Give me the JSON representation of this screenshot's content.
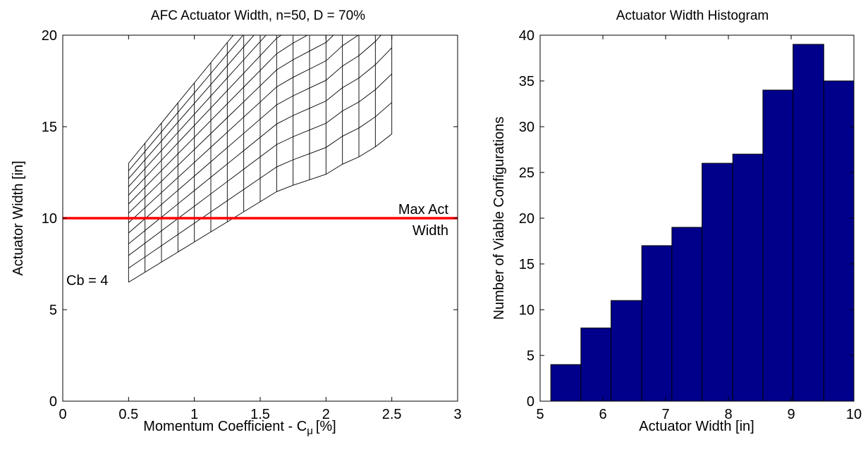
{
  "chart_data": [
    {
      "type": "line",
      "title": "AFC Actuator Width, n=50, D = 70%",
      "xlabel_main": "Momentum Coefficient - C",
      "xlabel_sub": "μ",
      "xlabel_unit": "[%]",
      "ylabel": "Actuator Width [in]",
      "xlim": [
        0,
        3
      ],
      "ylim": [
        0,
        20
      ],
      "xticks": [
        "0",
        "0.5",
        "1",
        "1.5",
        "2",
        "2.5",
        "3"
      ],
      "xtick_values": [
        0,
        0.5,
        1,
        1.5,
        2,
        2.5,
        3
      ],
      "yticks": [
        "0",
        "5",
        "10",
        "15",
        "20"
      ],
      "ytick_values": [
        0,
        5,
        10,
        15,
        20
      ],
      "grid": false,
      "carpet": {
        "cmu_values": [
          0.5,
          0.625,
          0.75,
          0.875,
          1.0,
          1.125,
          1.25,
          1.375,
          1.5,
          1.625,
          1.75,
          1.875,
          2.0,
          2.125,
          2.25,
          2.375,
          2.5
        ],
        "cb_base_width": [
          6.5,
          7.05,
          7.6,
          8.15,
          8.7,
          9.25,
          9.8,
          10.35,
          10.9,
          11.45,
          11.8,
          12.1,
          12.4,
          12.95,
          13.35,
          13.9,
          14.6
        ],
        "cb_count": 13,
        "width_exponent": 0.5
      },
      "reference_line": {
        "y": 10,
        "color": "#ff0000",
        "label_line1": "Max Act",
        "label_line2": "Width"
      },
      "annotation": {
        "text": "Cb = 4",
        "x": 0.5,
        "y": 6.5
      }
    },
    {
      "type": "bar",
      "title": "Actuator Width Histogram",
      "xlabel": "Actuator Width [in]",
      "ylabel": "Number of Viable Configurations",
      "xlim": [
        5,
        10
      ],
      "ylim": [
        0,
        40
      ],
      "xticks": [
        "5",
        "6",
        "7",
        "8",
        "9",
        "10"
      ],
      "xtick_values": [
        5,
        6,
        7,
        8,
        9,
        10
      ],
      "yticks": [
        "0",
        "5",
        "10",
        "15",
        "20",
        "25",
        "30",
        "35",
        "40"
      ],
      "ytick_values": [
        0,
        5,
        10,
        15,
        20,
        25,
        30,
        35,
        40
      ],
      "bin_edges": [
        5.17,
        5.65,
        6.13,
        6.62,
        7.1,
        7.58,
        8.07,
        8.55,
        9.03,
        9.52,
        10.0
      ],
      "values": [
        4,
        8,
        11,
        17,
        19,
        26,
        27,
        34,
        39,
        35
      ],
      "bar_color": "#00008b",
      "grid": false
    }
  ]
}
